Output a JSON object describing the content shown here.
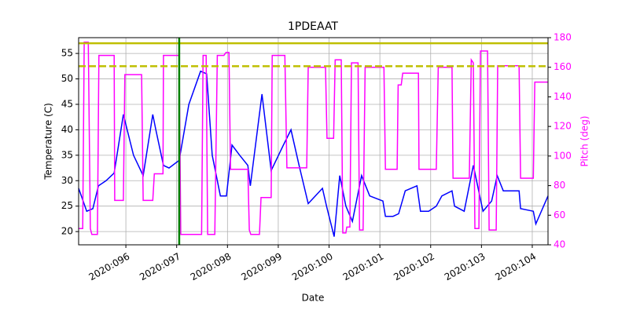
{
  "chart_data": {
    "type": "line",
    "title": "1PDEAAT",
    "x_label": "Date",
    "y_label": "Temperature (C)",
    "y2_label": "Pitch (deg)",
    "xlim": [
      95.07,
      104.31
    ],
    "ylim": [
      17.4,
      58.1
    ],
    "y2lim": [
      40,
      180
    ],
    "grid": true,
    "xticks": [
      {
        "value": 96,
        "label": "2020:096"
      },
      {
        "value": 97,
        "label": "2020:097"
      },
      {
        "value": 98,
        "label": "2020:098"
      },
      {
        "value": 99,
        "label": "2020:099"
      },
      {
        "value": 100,
        "label": "2020:100"
      },
      {
        "value": 101,
        "label": "2020:101"
      },
      {
        "value": 102,
        "label": "2020:102"
      },
      {
        "value": 103,
        "label": "2020:103"
      },
      {
        "value": 104,
        "label": "2020:104"
      }
    ],
    "yticks": [
      20,
      25,
      30,
      35,
      40,
      45,
      50,
      55
    ],
    "y2ticks": [
      40,
      60,
      80,
      100,
      120,
      140,
      160,
      180
    ],
    "y2_color": "#ff00ff",
    "hlines": [
      {
        "value": 57,
        "color": "#bfbf00",
        "style": "solid"
      },
      {
        "value": 52.5,
        "color": "#bfbf00",
        "style": "dashed"
      }
    ],
    "vlines": [
      {
        "value": 97.05,
        "color": "#008000"
      }
    ],
    "series": [
      {
        "color": "#0000ff",
        "axis": "y",
        "x": [
          95.07,
          95.23,
          95.35,
          95.46,
          95.61,
          95.77,
          95.95,
          96.15,
          96.34,
          96.53,
          96.59,
          96.74,
          96.85,
          97.05,
          97.24,
          97.47,
          97.59,
          97.7,
          97.86,
          97.98,
          98.09,
          98.24,
          98.4,
          98.45,
          98.68,
          98.86,
          99.1,
          99.25,
          99.41,
          99.59,
          99.87,
          99.95,
          100.1,
          100.21,
          100.33,
          100.46,
          100.64,
          100.8,
          101.06,
          101.11,
          101.26,
          101.37,
          101.5,
          101.73,
          101.8,
          101.96,
          102.11,
          102.22,
          102.42,
          102.47,
          102.66,
          102.84,
          103.03,
          103.2,
          103.31,
          103.43,
          103.74,
          103.77,
          104.02,
          104.07,
          104.31
        ],
        "values": [
          28.5,
          24,
          24.5,
          29,
          30,
          31.5,
          43,
          35,
          31,
          43,
          40,
          33,
          32.5,
          34,
          45,
          51.5,
          51,
          35,
          27,
          27,
          37,
          35,
          33,
          29,
          47,
          32,
          37,
          40,
          33,
          25.5,
          28.5,
          25,
          19,
          31,
          25,
          22,
          31,
          27,
          26,
          23,
          23,
          23.5,
          28,
          29,
          24,
          24,
          25,
          27,
          28,
          25,
          24,
          33,
          24,
          26,
          31,
          28,
          28,
          24.5,
          24,
          21.5,
          27
        ]
      },
      {
        "color": "#ff00ff",
        "axis": "y2",
        "x": [
          95.07,
          95.15,
          95.18,
          95.26,
          95.3,
          95.33,
          95.44,
          95.47,
          95.77,
          95.78,
          95.95,
          95.98,
          96.31,
          96.34,
          96.53,
          96.56,
          96.73,
          96.74,
          97.05,
          97.08,
          97.49,
          97.52,
          97.58,
          97.61,
          97.75,
          97.8,
          97.93,
          97.97,
          98.03,
          98.06,
          98.4,
          98.43,
          98.46,
          98.63,
          98.66,
          98.86,
          98.88,
          99.13,
          99.17,
          99.56,
          99.59,
          99.93,
          99.96,
          100.09,
          100.12,
          100.24,
          100.27,
          100.33,
          100.35,
          100.41,
          100.44,
          100.57,
          100.6,
          100.67,
          100.71,
          101.08,
          101.11,
          101.34,
          101.36,
          101.42,
          101.45,
          101.76,
          101.77,
          102.11,
          102.15,
          102.42,
          102.44,
          102.76,
          102.8,
          102.84,
          102.87,
          102.95,
          102.98,
          103.12,
          103.15,
          103.29,
          103.32,
          103.74,
          103.77,
          104.02,
          104.05,
          104.31
        ],
        "values": [
          51,
          51,
          177,
          177,
          51,
          47,
          47,
          168,
          168,
          70,
          70,
          155,
          155,
          70,
          70,
          88,
          88,
          168,
          168,
          47,
          47,
          168,
          168,
          47,
          47,
          168,
          168,
          170,
          170,
          91,
          91,
          50,
          47,
          47,
          72,
          72,
          168,
          168,
          92,
          92,
          160,
          160,
          112,
          112,
          165,
          165,
          48,
          48,
          52,
          52,
          163,
          163,
          50,
          50,
          160,
          160,
          91,
          91,
          148,
          148,
          156,
          156,
          91,
          91,
          160,
          160,
          85,
          85,
          165,
          163,
          51,
          51,
          171,
          171,
          50,
          50,
          161,
          161,
          85,
          85,
          150,
          150
        ]
      }
    ]
  }
}
